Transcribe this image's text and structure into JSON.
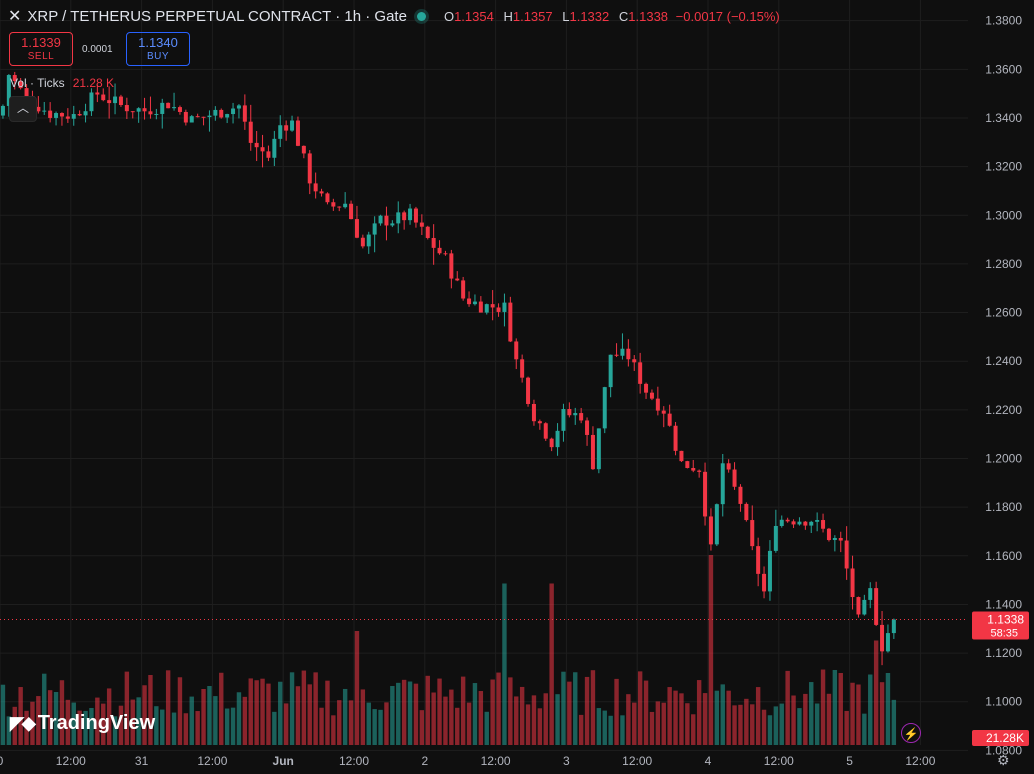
{
  "header": {
    "title": "XRP / TETHERUS PERPETUAL CONTRACT · 1h · Gate",
    "o_label": "O",
    "o": "1.1354",
    "h_label": "H",
    "h": "1.1357",
    "l_label": "L",
    "l": "1.1332",
    "c_label": "C",
    "c": "1.1338",
    "change": "−0.0017 (−0.15%)"
  },
  "trade": {
    "sell_price": "1.1339",
    "sell_label": "SELL",
    "spread": "0.0001",
    "buy_price": "1.1340",
    "buy_label": "BUY"
  },
  "volume_legend": {
    "label": "Vol · Ticks",
    "value": "21.28 K"
  },
  "branding": "TradingView",
  "colors": {
    "up": "#26a69a",
    "down": "#f23645",
    "background": "#0f0f0f",
    "grid": "#1e1e1e"
  },
  "icons": {
    "close": "close-icon",
    "collapse": "chevron-up-icon",
    "bolt": "lightning-icon",
    "settings": "gear-icon",
    "logo": "tradingview-logo"
  },
  "chart_data": {
    "type": "candlestick",
    "interval": "1h",
    "ylim": [
      1.0705,
      1.3885
    ],
    "y_ticks": [
      "1.3800",
      "1.3600",
      "1.3400",
      "1.3200",
      "1.3000",
      "1.2800",
      "1.2600",
      "1.2400",
      "1.2200",
      "1.2000",
      "1.1800",
      "1.1600",
      "1.1400",
      "1.1200",
      "1.1000",
      "1.0800"
    ],
    "x_ticks": [
      {
        "label": "0",
        "i": 0
      },
      {
        "label": "12:00",
        "i": 12
      },
      {
        "label": "31",
        "i": 24
      },
      {
        "label": "12:00",
        "i": 36
      },
      {
        "label": "Jun",
        "i": 48
      },
      {
        "label": "12:00",
        "i": 60
      },
      {
        "label": "2",
        "i": 72
      },
      {
        "label": "12:00",
        "i": 84
      },
      {
        "label": "3",
        "i": 96
      },
      {
        "label": "12:00",
        "i": 108
      },
      {
        "label": "4",
        "i": 120
      },
      {
        "label": "12:00",
        "i": 132
      },
      {
        "label": "5",
        "i": 144
      },
      {
        "label": "12:00",
        "i": 156
      }
    ],
    "last_price": "1.1338",
    "countdown": "58:35",
    "last_volume": "21.28K",
    "close_path": [
      [
        0,
        1.345
      ],
      [
        1,
        1.358
      ],
      [
        4,
        1.348
      ],
      [
        8,
        1.342
      ],
      [
        12,
        1.341
      ],
      [
        16,
        1.35
      ],
      [
        20,
        1.345
      ],
      [
        24,
        1.343
      ],
      [
        28,
        1.346
      ],
      [
        32,
        1.339
      ],
      [
        36,
        1.342
      ],
      [
        40,
        1.345
      ],
      [
        42,
        1.33
      ],
      [
        45,
        1.324
      ],
      [
        47,
        1.337
      ],
      [
        49,
        1.338
      ],
      [
        52,
        1.315
      ],
      [
        55,
        1.303
      ],
      [
        58,
        1.305
      ],
      [
        61,
        1.287
      ],
      [
        64,
        1.298
      ],
      [
        66,
        1.298
      ],
      [
        69,
        1.3
      ],
      [
        72,
        1.29
      ],
      [
        75,
        1.282
      ],
      [
        78,
        1.266
      ],
      [
        81,
        1.263
      ],
      [
        85,
        1.262
      ],
      [
        87,
        1.24
      ],
      [
        90,
        1.218
      ],
      [
        93,
        1.207
      ],
      [
        95,
        1.218
      ],
      [
        98,
        1.218
      ],
      [
        100,
        1.198
      ],
      [
        103,
        1.243
      ],
      [
        106,
        1.242
      ],
      [
        109,
        1.228
      ],
      [
        112,
        1.22
      ],
      [
        115,
        1.198
      ],
      [
        118,
        1.196
      ],
      [
        120,
        1.162
      ],
      [
        122,
        1.198
      ],
      [
        125,
        1.182
      ],
      [
        127,
        1.162
      ],
      [
        129,
        1.145
      ],
      [
        131,
        1.175
      ],
      [
        134,
        1.175
      ],
      [
        137,
        1.175
      ],
      [
        140,
        1.168
      ],
      [
        142,
        1.165
      ],
      [
        145,
        1.133
      ],
      [
        147,
        1.145
      ],
      [
        149,
        1.123
      ],
      [
        151,
        1.1338
      ]
    ],
    "volume_spikes": {
      "85": 0.85,
      "93": 0.85,
      "60": 0.6,
      "120": 1.0,
      "148": 0.55
    }
  }
}
